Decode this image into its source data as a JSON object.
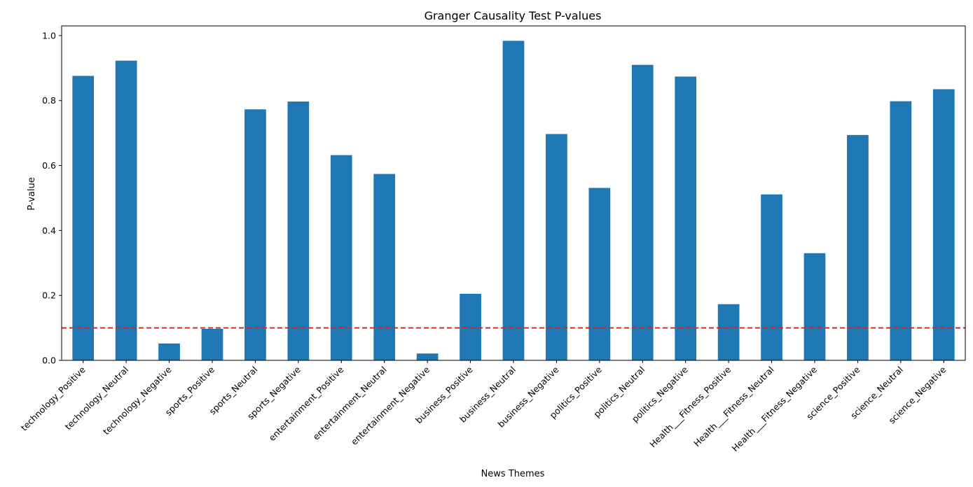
{
  "chart_data": {
    "type": "bar",
    "title": "Granger Causality Test P-values",
    "xlabel": "News Themes",
    "ylabel": "P-value",
    "ylim": [
      0,
      1.03
    ],
    "yticks": [
      "0.0",
      "0.2",
      "0.4",
      "0.6",
      "0.8",
      "1.0"
    ],
    "ytick_values": [
      0,
      0.2,
      0.4,
      0.6,
      0.8,
      1.0
    ],
    "categories": [
      "technology_Positive",
      "technology_Neutral",
      "technology_Negative",
      "sports_Positive",
      "sports_Neutral",
      "sports_Negative",
      "entertainment_Positive",
      "entertainment_Neutral",
      "entertainment_Negative",
      "business_Positive",
      "business_Neutral",
      "business_Negative",
      "politics_Positive",
      "politics_Neutral",
      "politics_Negative",
      "Health___Fitness_Positive",
      "Health___Fitness_Neutral",
      "Health___Fitness_Negative",
      "science_Positive",
      "science_Neutral",
      "science_Negative"
    ],
    "values": [
      0.876,
      0.923,
      0.052,
      0.097,
      0.773,
      0.797,
      0.632,
      0.574,
      0.021,
      0.205,
      0.984,
      0.697,
      0.531,
      0.91,
      0.874,
      0.173,
      0.511,
      0.33,
      0.694,
      0.798,
      0.835
    ],
    "threshold": 0.1,
    "grid": false,
    "legend": "none",
    "colors": {
      "bar": "#1f77b4",
      "threshold": "#d62728",
      "axis": "#000000"
    }
  }
}
